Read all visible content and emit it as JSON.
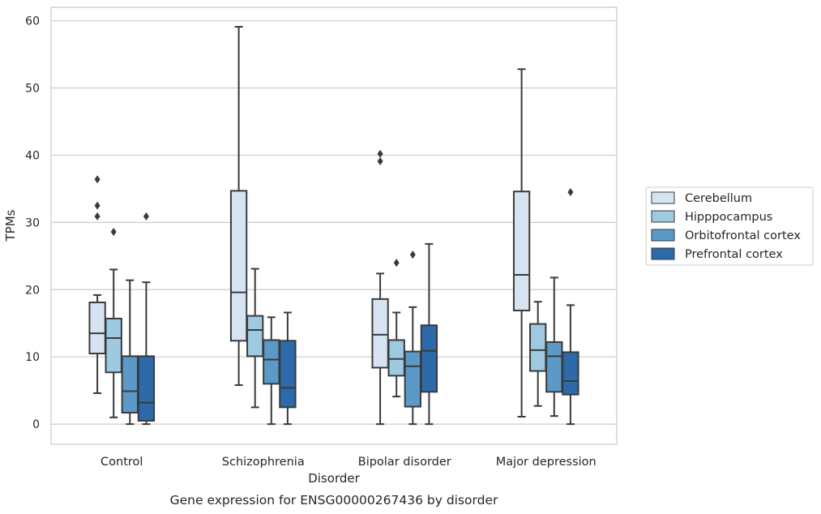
{
  "chart_data": {
    "type": "box",
    "title": "",
    "caption": "Gene expression for ENSG00000267436 by disorder",
    "xlabel": "Disorder",
    "ylabel": "TPMs",
    "ylim": [
      -3,
      62
    ],
    "yticks": [
      0,
      10,
      20,
      30,
      40,
      50,
      60
    ],
    "grid": true,
    "legend_position": "right",
    "categories": [
      "Control",
      "Schizophrenia",
      "Bipolar disorder",
      "Major depression"
    ],
    "series": [
      {
        "name": "Cerebellum",
        "color": "#d6e4f2",
        "boxes": [
          {
            "whisker_low": 4.6,
            "q1": 10.5,
            "median": 13.5,
            "q3": 18.1,
            "whisker_high": 19.2,
            "outliers": [
              30.9,
              32.5,
              36.4
            ]
          },
          {
            "whisker_low": 5.8,
            "q1": 12.4,
            "median": 19.6,
            "q3": 34.7,
            "whisker_high": 59.1,
            "outliers": []
          },
          {
            "whisker_low": 0.0,
            "q1": 8.4,
            "median": 13.3,
            "q3": 18.6,
            "whisker_high": 22.4,
            "outliers": [
              39.1,
              40.2
            ]
          },
          {
            "whisker_low": 1.1,
            "q1": 16.9,
            "median": 22.2,
            "q3": 34.6,
            "whisker_high": 52.8,
            "outliers": []
          }
        ]
      },
      {
        "name": "Hipppocampus",
        "color": "#9ecae1",
        "boxes": [
          {
            "whisker_low": 1.0,
            "q1": 7.7,
            "median": 12.8,
            "q3": 15.7,
            "whisker_high": 23.0,
            "outliers": [
              28.6
            ]
          },
          {
            "whisker_low": 2.5,
            "q1": 10.1,
            "median": 14.0,
            "q3": 16.1,
            "whisker_high": 23.1,
            "outliers": []
          },
          {
            "whisker_low": 4.1,
            "q1": 7.2,
            "median": 9.7,
            "q3": 12.5,
            "whisker_high": 16.6,
            "outliers": [
              24.0
            ]
          },
          {
            "whisker_low": 2.7,
            "q1": 7.9,
            "median": 11.0,
            "q3": 14.9,
            "whisker_high": 18.2,
            "outliers": []
          }
        ]
      },
      {
        "name": "Orbitofrontal cortex",
        "color": "#5b9ac8",
        "boxes": [
          {
            "whisker_low": 0.0,
            "q1": 1.7,
            "median": 4.9,
            "q3": 10.1,
            "whisker_high": 21.4,
            "outliers": []
          },
          {
            "whisker_low": 0.0,
            "q1": 6.0,
            "median": 9.6,
            "q3": 12.5,
            "whisker_high": 15.9,
            "outliers": []
          },
          {
            "whisker_low": 0.0,
            "q1": 2.6,
            "median": 8.6,
            "q3": 10.8,
            "whisker_high": 17.4,
            "outliers": [
              25.2
            ]
          },
          {
            "whisker_low": 1.2,
            "q1": 4.8,
            "median": 10.1,
            "q3": 12.2,
            "whisker_high": 21.8,
            "outliers": []
          }
        ]
      },
      {
        "name": "Prefrontal cortex",
        "color": "#2c6aa9",
        "boxes": [
          {
            "whisker_low": 0.0,
            "q1": 0.5,
            "median": 3.2,
            "q3": 10.1,
            "whisker_high": 21.1,
            "outliers": [
              30.9
            ]
          },
          {
            "whisker_low": 0.0,
            "q1": 2.5,
            "median": 5.4,
            "q3": 12.4,
            "whisker_high": 16.6,
            "outliers": []
          },
          {
            "whisker_low": 0.0,
            "q1": 4.8,
            "median": 10.9,
            "q3": 14.7,
            "whisker_high": 26.8,
            "outliers": []
          },
          {
            "whisker_low": 0.0,
            "q1": 4.4,
            "median": 6.4,
            "q3": 10.7,
            "whisker_high": 17.7,
            "outliers": [
              34.5
            ]
          }
        ]
      }
    ]
  }
}
